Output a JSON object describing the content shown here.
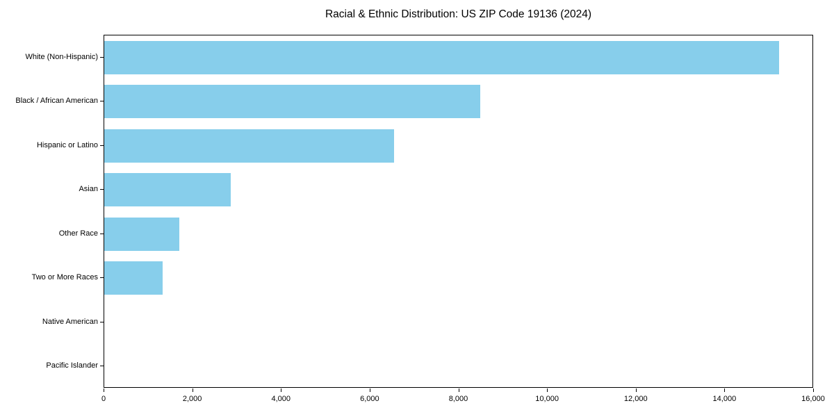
{
  "chart_data": {
    "type": "bar",
    "orientation": "horizontal",
    "title": "Racial & Ethnic Distribution: US ZIP Code 19136 (2024)",
    "categories": [
      "White (Non-Hispanic)",
      "Black / African American",
      "Hispanic or Latino",
      "Asian",
      "Other Race",
      "Two or More Races",
      "Native American",
      "Pacific Islander"
    ],
    "values": [
      15250,
      8500,
      6550,
      2860,
      1700,
      1320,
      0,
      0
    ],
    "xlabel": "",
    "ylabel": "",
    "xlim": [
      0,
      16000
    ],
    "x_ticks": [
      0,
      2000,
      4000,
      6000,
      8000,
      10000,
      12000,
      14000,
      16000
    ],
    "x_tick_labels": [
      "0",
      "2,000",
      "4,000",
      "6,000",
      "8,000",
      "10,000",
      "12,000",
      "14,000",
      "16,000"
    ],
    "bar_color": "#87CEEB",
    "grid": false,
    "legend": null,
    "frame": true
  }
}
